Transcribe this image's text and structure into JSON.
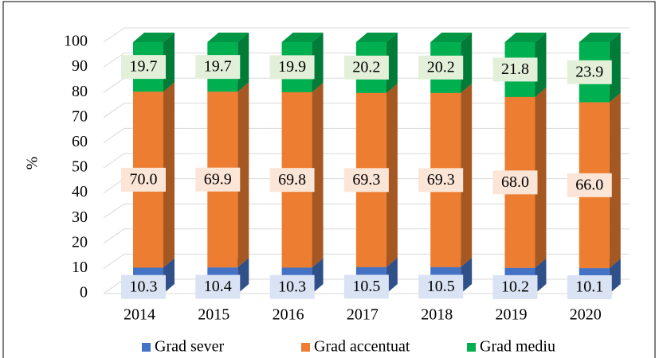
{
  "chart_data": {
    "type": "bar3d_stacked",
    "y_label": "%",
    "categories": [
      "2014",
      "2015",
      "2016",
      "2017",
      "2018",
      "2019",
      "2020"
    ],
    "series": [
      {
        "name": "Grad sever",
        "color": "#4472c4",
        "label_fill": "#dae3f3",
        "values": [
          10.3,
          10.4,
          10.3,
          10.5,
          10.5,
          10.2,
          10.1
        ],
        "value_labels": [
          "10.3",
          "10.4",
          "10.3",
          "10.5",
          "10.5",
          "10.2",
          "10.1"
        ]
      },
      {
        "name": "Grad accentuat",
        "color": "#ed7d31",
        "label_fill": "#fbe5d6",
        "values": [
          70.0,
          69.9,
          69.8,
          69.3,
          69.3,
          68.0,
          66.0
        ],
        "value_labels": [
          "70.0",
          "69.9",
          "69.8",
          "69.3",
          "69.3",
          "68.0",
          "66.0"
        ]
      },
      {
        "name": "Grad mediu",
        "color": "#00b050",
        "label_fill": "#e2f0d9",
        "values": [
          19.7,
          19.7,
          19.9,
          20.2,
          20.2,
          21.8,
          23.9
        ],
        "value_labels": [
          "19.7",
          "19.7",
          "19.9",
          "20.2",
          "20.2",
          "21.8",
          "23.9"
        ]
      }
    ],
    "ylim": [
      0,
      100
    ],
    "yticks": [
      0,
      10,
      20,
      30,
      40,
      50,
      60,
      70,
      80,
      90,
      100
    ],
    "grid": true,
    "legend": "bottom"
  }
}
